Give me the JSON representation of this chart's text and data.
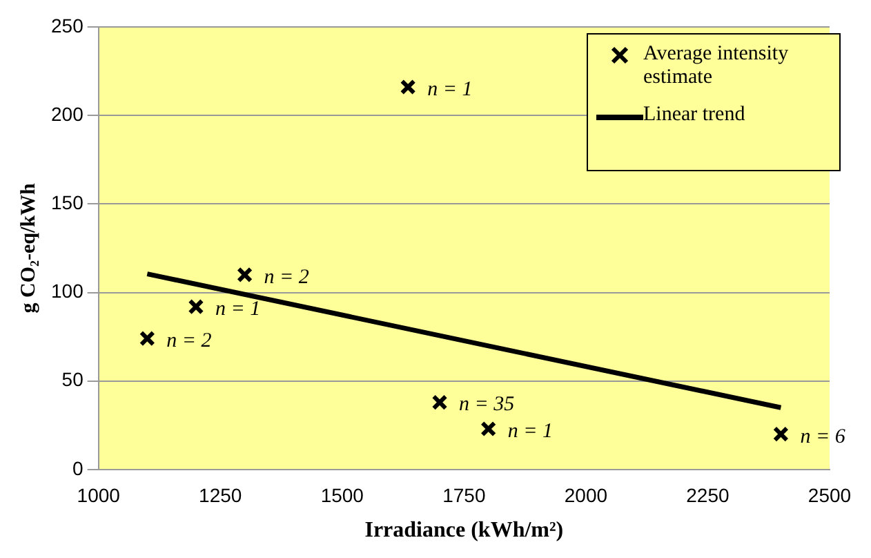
{
  "chart_data": {
    "type": "scatter",
    "xlabel": "Irradiance (kWh/m²)",
    "ylabel": "g CO₂-eq/kWh",
    "xlim": [
      1000,
      2500
    ],
    "xticks": [
      1000,
      1250,
      1500,
      1750,
      2000,
      2250,
      2500
    ],
    "ylim": [
      0,
      250
    ],
    "yticks": [
      0,
      50,
      100,
      150,
      200,
      250
    ],
    "grid": "y",
    "legend": "top right",
    "series": [
      {
        "name": "Average intensity estimate",
        "color": "#000000",
        "marker": "cross",
        "x": [
          1100,
          1200,
          1300,
          1635,
          1700,
          1800,
          2400
        ],
        "values": [
          74,
          92,
          110,
          216,
          38,
          23,
          20
        ]
      },
      {
        "name": "Linear trend",
        "type": "line",
        "color": "#000000",
        "marker": "none",
        "x": [
          1100,
          2400
        ],
        "values": [
          110.5,
          35
        ]
      }
    ],
    "annotations": [
      {
        "text": "n = 2",
        "x": 1100,
        "y": 74
      },
      {
        "text": "n = 1",
        "x": 1200,
        "y": 92
      },
      {
        "text": "n = 2",
        "x": 1300,
        "y": 110
      },
      {
        "text": "n = 1",
        "x": 1635,
        "y": 216
      },
      {
        "text": "n = 35",
        "x": 1700,
        "y": 38
      },
      {
        "text": "n = 1",
        "x": 1800,
        "y": 23
      },
      {
        "text": "n = 6",
        "x": 2400,
        "y": 20
      }
    ]
  }
}
